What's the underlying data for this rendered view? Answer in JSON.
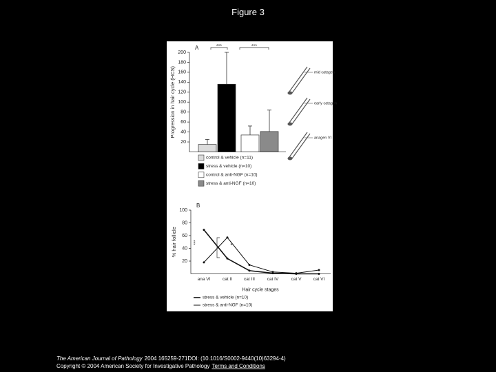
{
  "page_title": "Figure 3",
  "chart_data": [
    {
      "type": "bar",
      "panel": "A",
      "y_label": "Progression in hair cycle (HCS)",
      "ylim": [
        0,
        200
      ],
      "yticks": [
        20,
        40,
        60,
        80,
        100,
        120,
        140,
        160,
        180,
        200
      ],
      "series": [
        {
          "name": "control & vehicle (n=11)",
          "color": "#dcdcdc",
          "values": [
            15
          ],
          "errors": [
            10
          ]
        },
        {
          "name": "stress & vehicle (n=10)",
          "color": "#000000",
          "values": [
            136
          ],
          "errors": [
            64
          ]
        },
        {
          "name": "control & anti-NGF (n=10)",
          "color": "#ffffff",
          "values": [
            34
          ],
          "errors": [
            18
          ]
        },
        {
          "name": "stress & anti-NGF (n=10)",
          "color": "#8a8a8a",
          "values": [
            41
          ],
          "errors": [
            43
          ]
        }
      ],
      "annotations": [
        "***",
        "***"
      ],
      "side_labels": [
        "mid catagen",
        "early catagen",
        "anagen VI"
      ]
    },
    {
      "type": "line",
      "panel": "B",
      "y_label": "% hair follicle",
      "x_label": "Hair cycle stages",
      "categories": [
        "ana VI",
        "cat II",
        "cat III",
        "cat IV",
        "cat V",
        "cat VI"
      ],
      "ylim": [
        0,
        100
      ],
      "yticks": [
        20,
        40,
        60,
        80,
        100
      ],
      "series": [
        {
          "name": "stress & vehicle (n=10)",
          "color": "#111111",
          "values": [
            69,
            24,
            5,
            1,
            0,
            0
          ]
        },
        {
          "name": "stress & anti-NGF (n=10)",
          "color": "#111111",
          "values": [
            18,
            57,
            14,
            3,
            1,
            6
          ]
        }
      ],
      "annotations": [
        "***",
        "*"
      ]
    }
  ],
  "footer": {
    "journal": "The American Journal of Pathology",
    "details": "2004 165259-271DOI: (10.1016/S0002-9440(10)63294-4)",
    "copyright": "Copyright © 2004 American Society for Investigative Pathology",
    "link": "Terms and Conditions"
  }
}
